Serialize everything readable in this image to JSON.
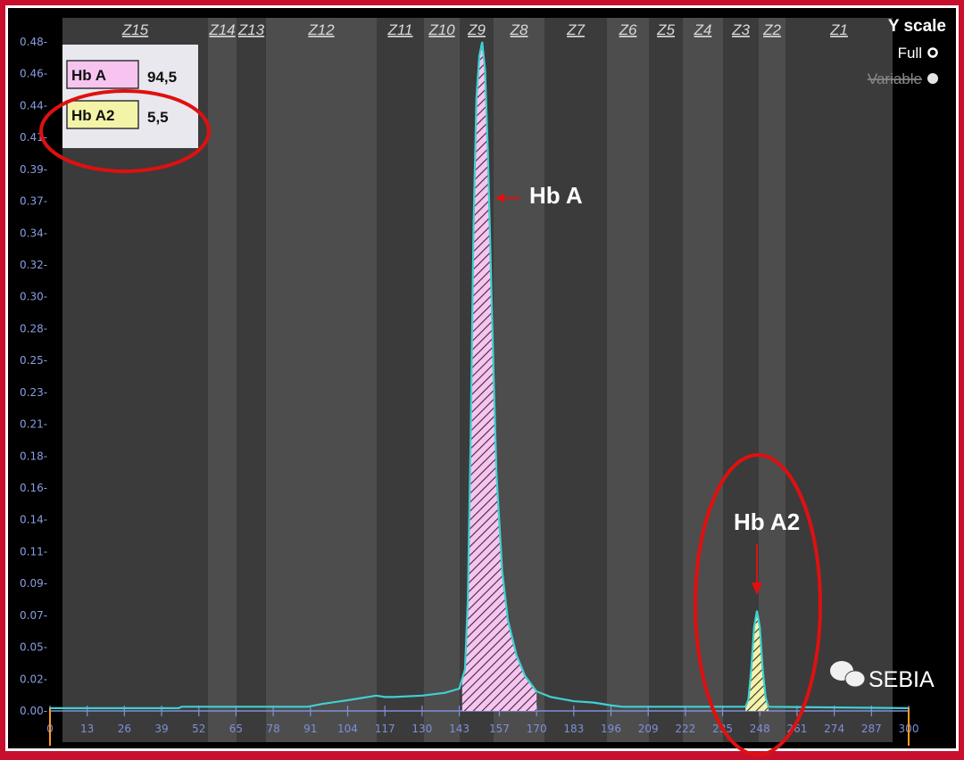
{
  "chart_data": {
    "type": "area",
    "title": "",
    "xlabel": "",
    "ylabel": "",
    "xlim": [
      0,
      300
    ],
    "ylim": [
      0,
      0.48
    ],
    "x_ticks": [
      "0",
      "13",
      "26",
      "39",
      "52",
      "65",
      "78",
      "91",
      "104",
      "117",
      "130",
      "143",
      "157",
      "170",
      "183",
      "196",
      "209",
      "222",
      "235",
      "248",
      "261",
      "274",
      "287",
      "300"
    ],
    "y_ticks": [
      "0.00",
      "0.02",
      "0.05",
      "0.07",
      "0.09",
      "0.11",
      "0.14",
      "0.16",
      "0.18",
      "0.21",
      "0.23",
      "0.25",
      "0.28",
      "0.30",
      "0.32",
      "0.34",
      "0.37",
      "0.39",
      "0.41",
      "0.44",
      "0.46",
      "0.48"
    ],
    "zones": [
      "Z15",
      "Z14",
      "Z13",
      "Z12",
      "Z11",
      "Z10",
      "Z9",
      "Z8",
      "Z7",
      "Z6",
      "Z5",
      "Z4",
      "Z3",
      "Z2",
      "Z1"
    ],
    "curve": [
      [
        0,
        0.002
      ],
      [
        45,
        0.002
      ],
      [
        46,
        0.003
      ],
      [
        90,
        0.003
      ],
      [
        95,
        0.005
      ],
      [
        105,
        0.008
      ],
      [
        114,
        0.011
      ],
      [
        117,
        0.01
      ],
      [
        120,
        0.01
      ],
      [
        130,
        0.011
      ],
      [
        138,
        0.013
      ],
      [
        143,
        0.016
      ],
      [
        145,
        0.03
      ],
      [
        146,
        0.08
      ],
      [
        147,
        0.2
      ],
      [
        148,
        0.35
      ],
      [
        149,
        0.44
      ],
      [
        150,
        0.47
      ],
      [
        151,
        0.48
      ],
      [
        152,
        0.46
      ],
      [
        153,
        0.4
      ],
      [
        154,
        0.32
      ],
      [
        155,
        0.24
      ],
      [
        156,
        0.17
      ],
      [
        158,
        0.1
      ],
      [
        160,
        0.065
      ],
      [
        163,
        0.04
      ],
      [
        166,
        0.025
      ],
      [
        170,
        0.014
      ],
      [
        175,
        0.01
      ],
      [
        183,
        0.007
      ],
      [
        190,
        0.006
      ],
      [
        196,
        0.004
      ],
      [
        200,
        0.003
      ],
      [
        243,
        0.003
      ],
      [
        244,
        0.008
      ],
      [
        245,
        0.03
      ],
      [
        246,
        0.06
      ],
      [
        247,
        0.072
      ],
      [
        248,
        0.06
      ],
      [
        249,
        0.03
      ],
      [
        250,
        0.01
      ],
      [
        251,
        0.003
      ],
      [
        300,
        0.002
      ]
    ],
    "fractions": [
      {
        "name": "Hb A",
        "value": "94,5",
        "range": [
          144,
          170
        ],
        "color": "#f7c4f0",
        "peak": 151
      },
      {
        "name": "Hb A2",
        "value": "5,5",
        "range": [
          243,
          251
        ],
        "color": "#f4f4a8",
        "peak": 247
      }
    ],
    "curve_color": "#3fd0d0",
    "legend_placement": "top-left"
  },
  "annotations": {
    "hba": "Hb A",
    "hba2": "Hb A2"
  },
  "y_scale": {
    "title": "Y scale",
    "full": "Full",
    "variable": "Variable",
    "selected": "Full"
  },
  "watermark": "SEBIA",
  "colors": {
    "frame": "#c8102e",
    "highlight": "#e01010"
  }
}
